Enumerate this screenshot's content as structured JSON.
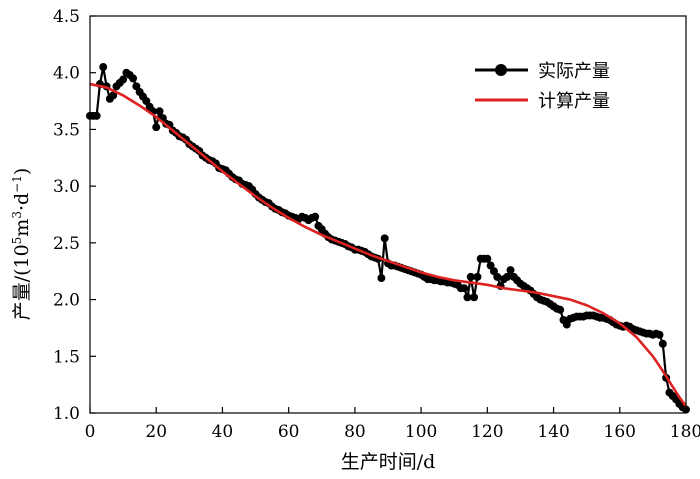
{
  "chart_data": {
    "type": "line",
    "title": "",
    "xlabel": "生产时间/d",
    "ylabel_parts": {
      "prefix": "产量/(10",
      "exp1": "5",
      "mid": "m",
      "exp2": "3",
      "dot": "·d",
      "exp3": "−1",
      "suffix": ")"
    },
    "xlim": [
      0,
      180
    ],
    "ylim": [
      1.0,
      4.5
    ],
    "xticks": [
      0,
      20,
      40,
      60,
      80,
      100,
      120,
      140,
      160,
      180
    ],
    "yticks": [
      "1.0",
      "1.5",
      "2.0",
      "2.5",
      "3.0",
      "3.5",
      "4.0",
      "4.5"
    ],
    "legend_position": "top-right",
    "series": [
      {
        "name": "实际产量",
        "color": "#000000",
        "marker": "circle",
        "x": [
          0,
          1,
          2,
          3,
          4,
          5,
          6,
          7,
          8,
          9,
          10,
          11,
          12,
          13,
          14,
          15,
          16,
          17,
          18,
          19,
          20,
          21,
          22,
          23,
          24,
          25,
          26,
          27,
          28,
          29,
          30,
          31,
          32,
          33,
          34,
          35,
          36,
          37,
          38,
          39,
          40,
          41,
          42,
          43,
          44,
          45,
          46,
          47,
          48,
          49,
          50,
          51,
          52,
          53,
          54,
          55,
          56,
          57,
          58,
          59,
          60,
          61,
          62,
          63,
          64,
          65,
          66,
          67,
          68,
          69,
          70,
          71,
          72,
          73,
          74,
          75,
          76,
          77,
          78,
          79,
          80,
          81,
          82,
          83,
          84,
          85,
          86,
          87,
          88,
          89,
          90,
          91,
          92,
          93,
          94,
          95,
          96,
          97,
          98,
          99,
          100,
          101,
          102,
          103,
          104,
          105,
          106,
          107,
          108,
          109,
          110,
          111,
          112,
          113,
          114,
          115,
          116,
          117,
          118,
          119,
          120,
          121,
          122,
          123,
          124,
          125,
          126,
          127,
          128,
          129,
          130,
          131,
          132,
          133,
          134,
          135,
          136,
          137,
          138,
          139,
          140,
          141,
          142,
          143,
          144,
          145,
          146,
          147,
          148,
          149,
          150,
          151,
          152,
          153,
          154,
          155,
          156,
          157,
          158,
          159,
          160,
          161,
          162,
          163,
          164,
          165,
          166,
          167,
          168,
          169,
          170,
          171,
          172,
          173,
          174,
          175,
          176,
          177,
          178,
          179,
          180
        ],
        "y": [
          3.62,
          3.62,
          3.62,
          3.9,
          4.05,
          3.88,
          3.77,
          3.8,
          3.88,
          3.91,
          3.94,
          4.0,
          3.98,
          3.95,
          3.88,
          3.83,
          3.79,
          3.75,
          3.7,
          3.66,
          3.52,
          3.66,
          3.6,
          3.55,
          3.54,
          3.49,
          3.47,
          3.44,
          3.43,
          3.41,
          3.37,
          3.35,
          3.33,
          3.31,
          3.27,
          3.25,
          3.23,
          3.22,
          3.2,
          3.16,
          3.15,
          3.14,
          3.11,
          3.08,
          3.06,
          3.05,
          3.02,
          3.01,
          3.0,
          2.97,
          2.93,
          2.9,
          2.88,
          2.86,
          2.85,
          2.82,
          2.8,
          2.79,
          2.77,
          2.76,
          2.74,
          2.73,
          2.72,
          2.71,
          2.73,
          2.72,
          2.7,
          2.72,
          2.73,
          2.65,
          2.62,
          2.58,
          2.55,
          2.53,
          2.52,
          2.51,
          2.5,
          2.49,
          2.47,
          2.46,
          2.44,
          2.44,
          2.43,
          2.42,
          2.4,
          2.38,
          2.37,
          2.36,
          2.19,
          2.54,
          2.32,
          2.3,
          2.3,
          2.29,
          2.28,
          2.27,
          2.26,
          2.25,
          2.24,
          2.23,
          2.22,
          2.2,
          2.18,
          2.18,
          2.17,
          2.17,
          2.16,
          2.16,
          2.15,
          2.15,
          2.14,
          2.13,
          2.1,
          2.1,
          2.02,
          2.2,
          2.02,
          2.2,
          2.36,
          2.36,
          2.36,
          2.3,
          2.25,
          2.2,
          2.12,
          2.18,
          2.2,
          2.26,
          2.2,
          2.17,
          2.14,
          2.12,
          2.1,
          2.08,
          2.05,
          2.02,
          2.0,
          1.99,
          1.98,
          1.96,
          1.94,
          1.92,
          1.91,
          1.82,
          1.78,
          1.83,
          1.84,
          1.85,
          1.85,
          1.85,
          1.86,
          1.86,
          1.86,
          1.85,
          1.84,
          1.84,
          1.83,
          1.82,
          1.8,
          1.78,
          1.77,
          1.76,
          1.77,
          1.76,
          1.74,
          1.73,
          1.72,
          1.71,
          1.7,
          1.7,
          1.69,
          1.7,
          1.69,
          1.61,
          1.31,
          1.18,
          1.15,
          1.12,
          1.08,
          1.05,
          1.03
        ]
      },
      {
        "name": "计算产量",
        "color": "#dd2222",
        "marker": "none",
        "x": [
          0,
          5,
          10,
          15,
          20,
          25,
          30,
          35,
          40,
          45,
          50,
          55,
          60,
          65,
          70,
          75,
          80,
          85,
          90,
          95,
          100,
          105,
          110,
          115,
          120,
          125,
          130,
          135,
          140,
          145,
          150,
          155,
          160,
          165,
          170,
          173,
          176,
          178,
          180
        ],
        "y": [
          3.9,
          3.87,
          3.8,
          3.71,
          3.61,
          3.49,
          3.37,
          3.25,
          3.13,
          3.02,
          2.91,
          2.81,
          2.72,
          2.64,
          2.57,
          2.51,
          2.45,
          2.39,
          2.34,
          2.29,
          2.24,
          2.2,
          2.17,
          2.15,
          2.13,
          2.1,
          2.08,
          2.06,
          2.03,
          2.0,
          1.95,
          1.88,
          1.79,
          1.67,
          1.5,
          1.37,
          1.23,
          1.14,
          1.06
        ]
      }
    ]
  }
}
